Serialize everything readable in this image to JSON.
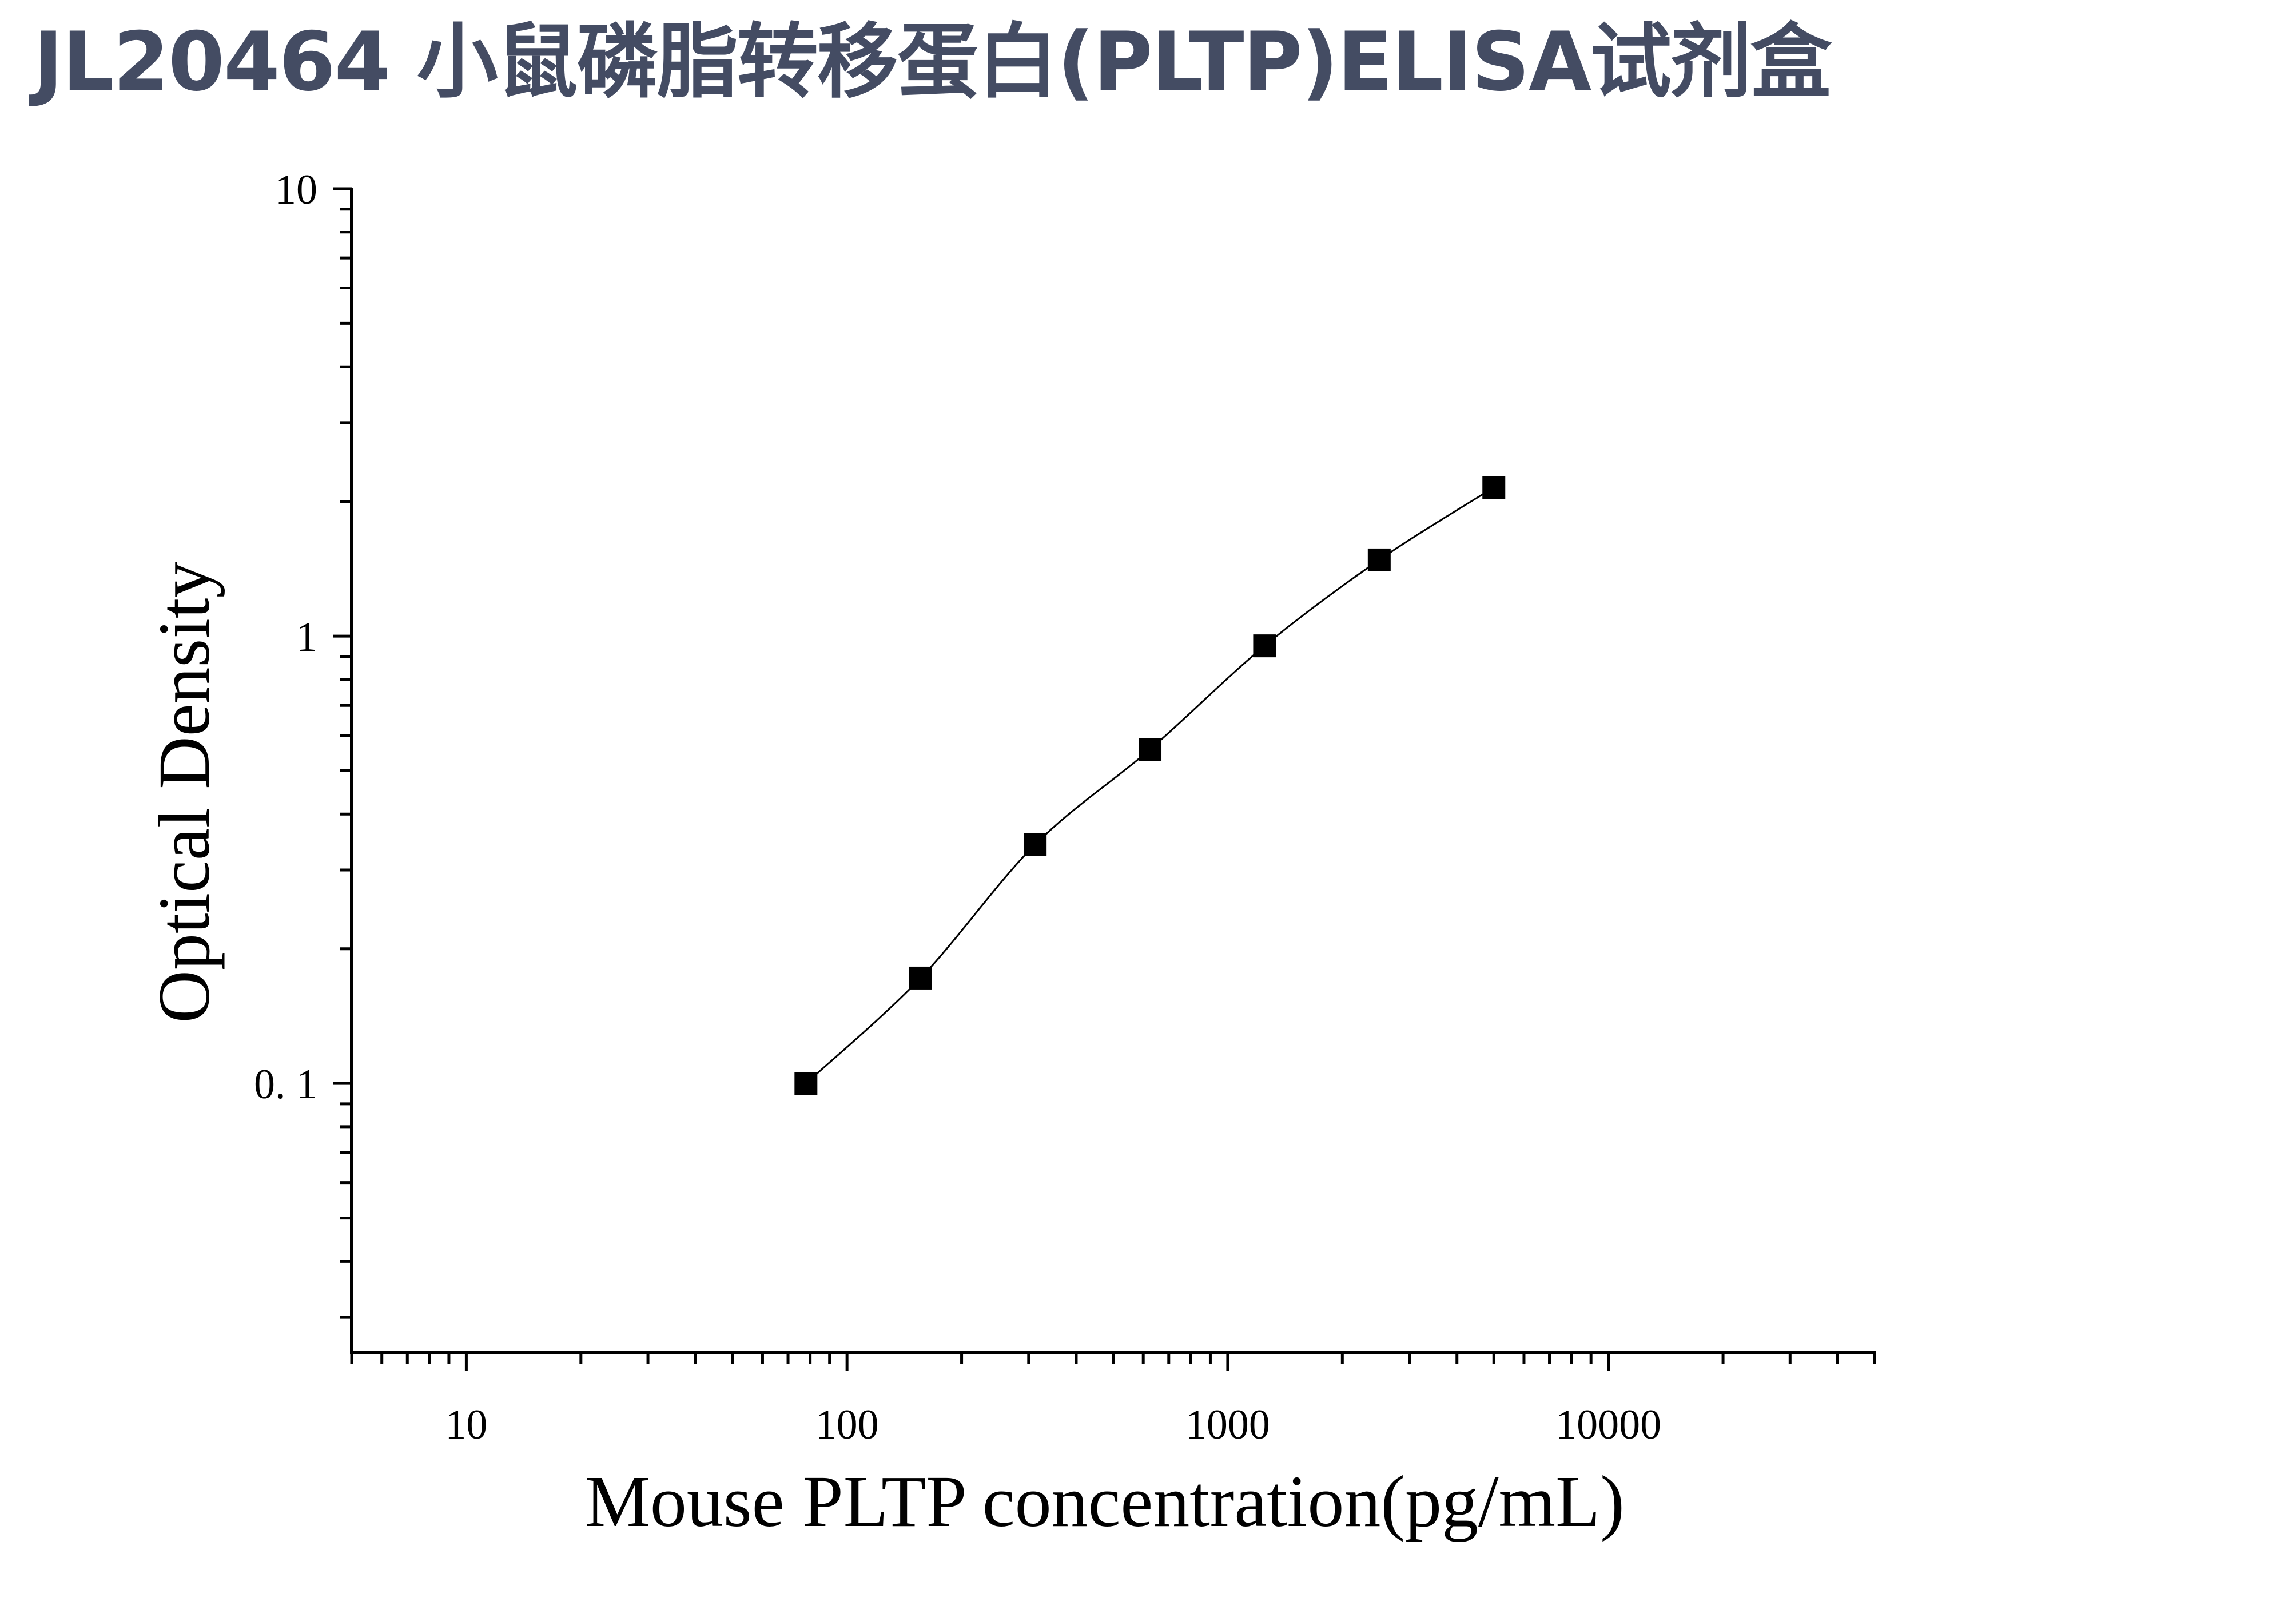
{
  "title": "JL20464 小鼠磷脂转移蛋白(PLTP)ELISA试剂盒",
  "chart_data": {
    "type": "scatter",
    "title": "JL20464 小鼠磷脂转移蛋白(PLTP)ELISA试剂盒",
    "xlabel": "Mouse PLTP concentration(pg/mL)",
    "ylabel": "Optical Density",
    "x_scale": "log",
    "y_scale": "log",
    "xlim": [
      5,
      50000
    ],
    "ylim": [
      0.025,
      10
    ],
    "x_ticks": [
      10,
      100,
      1000,
      10000
    ],
    "x_tick_labels": [
      "10",
      "100",
      "1000",
      "10000"
    ],
    "y_ticks": [
      0.1,
      1,
      10
    ],
    "y_tick_labels": [
      "0. 1",
      "1",
      "10"
    ],
    "grid": false,
    "legend": "none",
    "marker": "square",
    "colors": {
      "marker": "#000000",
      "line": "#000000",
      "title": "#444c63"
    },
    "series": [
      {
        "x": [
          78,
          156,
          312,
          625,
          1250,
          2500,
          5000
        ],
        "y": [
          0.1,
          0.172,
          0.342,
          0.558,
          0.951,
          1.48,
          2.15
        ]
      }
    ]
  }
}
